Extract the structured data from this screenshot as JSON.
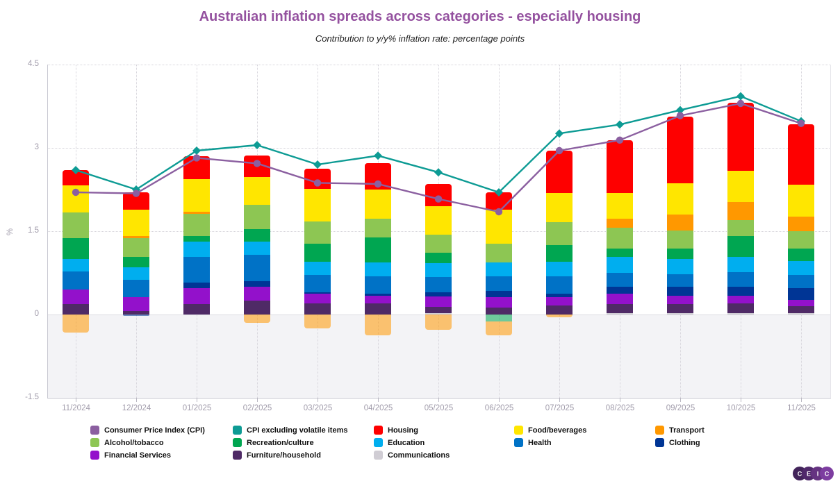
{
  "header": {
    "title": "Australian inflation spreads across categories - especially housing",
    "subtitle": "Contribution to y/y% inflation rate: percentage points",
    "title_color": "#94519f"
  },
  "axis": {
    "y_label": "%",
    "y_ticks": [
      "4.5",
      "3",
      "1.5",
      "0",
      "-1.5"
    ],
    "y_tick_values": [
      4.5,
      3,
      1.5,
      0,
      -1.5
    ],
    "ylim": [
      -1.5,
      4.5
    ]
  },
  "chart_data": {
    "type": "bar",
    "subtype": "stacked-bar-with-lines",
    "title": "Australian inflation spreads across categories - especially housing",
    "subtitle": "Contribution to y/y% inflation rate: percentage points",
    "ylabel": "%",
    "ylim": [
      -1.5,
      4.5
    ],
    "grid": "dotted",
    "categories": [
      "11/2024",
      "12/2024",
      "01/2025",
      "02/2025",
      "03/2025",
      "04/2025",
      "05/2025",
      "06/2025",
      "07/2025",
      "08/2025",
      "09/2025",
      "10/2025",
      "11/2025"
    ],
    "bar_series": [
      {
        "name": "Communications",
        "color": "#d0cdd4",
        "values": [
          0,
          0,
          0,
          0,
          0,
          0,
          0.02,
          0,
          0,
          0.03,
          0.03,
          0.02,
          0.02
        ]
      },
      {
        "name": "Furniture/household",
        "color": "#4f2a66",
        "values": [
          0.19,
          0.06,
          0.19,
          0.25,
          0.2,
          0.2,
          0.12,
          0.13,
          0.16,
          0.16,
          0.16,
          0.18,
          0.13
        ]
      },
      {
        "name": "Financial Services",
        "color": "#9311cb",
        "values": [
          0.26,
          0.25,
          0.29,
          0.25,
          0.17,
          0.14,
          0.18,
          0.18,
          0.15,
          0.19,
          0.15,
          0.14,
          0.11
        ]
      },
      {
        "name": "Clothing",
        "color": "#003595",
        "values": [
          0,
          -0.03,
          0.1,
          0.1,
          0.03,
          0.04,
          0.08,
          0.12,
          0.07,
          0.12,
          0.16,
          0.16,
          0.22
        ]
      },
      {
        "name": "Health",
        "color": "#0072c6",
        "values": [
          0.32,
          0.32,
          0.46,
          0.48,
          0.31,
          0.31,
          0.27,
          0.26,
          0.31,
          0.25,
          0.23,
          0.26,
          0.23
        ]
      },
      {
        "name": "Education",
        "color": "#00aeef",
        "values": [
          0.23,
          0.22,
          0.27,
          0.23,
          0.24,
          0.25,
          0.25,
          0.25,
          0.26,
          0.29,
          0.27,
          0.28,
          0.25
        ]
      },
      {
        "name": "Recreation/culture",
        "color": "#00a651",
        "values": [
          0.38,
          0.19,
          0.1,
          0.23,
          0.32,
          0.45,
          0.19,
          -0.13,
          0.3,
          0.15,
          0.19,
          0.37,
          0.23
        ]
      },
      {
        "name": "Alcohol/tobacco",
        "color": "#8dc653",
        "values": [
          0.46,
          0.34,
          0.4,
          0.44,
          0.4,
          0.34,
          0.33,
          0.34,
          0.41,
          0.37,
          0.32,
          0.29,
          0.31
        ]
      },
      {
        "name": "Transport",
        "color": "#ff9800",
        "values": [
          -0.33,
          0.03,
          0.04,
          -0.15,
          -0.25,
          -0.38,
          -0.27,
          -0.24,
          -0.05,
          0.17,
          0.29,
          0.33,
          0.26
        ]
      },
      {
        "name": "Food/beverages",
        "color": "#ffe600",
        "values": [
          0.49,
          0.48,
          0.59,
          0.5,
          0.59,
          0.52,
          0.51,
          0.61,
          0.53,
          0.46,
          0.56,
          0.56,
          0.58
        ]
      },
      {
        "name": "Housing",
        "color": "#fe0000",
        "values": [
          0.27,
          0.31,
          0.41,
          0.38,
          0.37,
          0.48,
          0.4,
          0.31,
          0.76,
          0.95,
          1.2,
          1.22,
          1.09
        ]
      }
    ],
    "line_series": [
      {
        "name": "CPI excluding volatile items",
        "color": "#0d9b94",
        "marker": "diamond",
        "values": [
          2.6,
          2.25,
          2.95,
          3.05,
          2.7,
          2.86,
          2.56,
          2.2,
          3.26,
          3.42,
          3.68,
          3.93,
          3.48
        ]
      },
      {
        "name": "Consumer Price Index (CPI)",
        "color": "#8b5fa0",
        "marker": "circle",
        "values": [
          2.2,
          2.18,
          2.82,
          2.72,
          2.37,
          2.35,
          2.08,
          1.85,
          2.95,
          3.14,
          3.58,
          3.8,
          3.44
        ]
      }
    ],
    "negative_segment_opacity": 0.55,
    "legend_position": "bottom"
  },
  "legend": {
    "rows": [
      [
        {
          "label": "Consumer Price Index (CPI)",
          "color": "#8b5fa0"
        },
        {
          "label": "CPI excluding volatile items",
          "color": "#0d9b94"
        },
        {
          "label": "Housing",
          "color": "#fe0000"
        },
        {
          "label": "Food/beverages",
          "color": "#ffe600"
        },
        {
          "label": "Transport",
          "color": "#ff9800"
        }
      ],
      [
        {
          "label": "Alcohol/tobacco",
          "color": "#8dc653"
        },
        {
          "label": "Recreation/culture",
          "color": "#00a651"
        },
        {
          "label": "Education",
          "color": "#00aeef"
        },
        {
          "label": "Health",
          "color": "#0072c6"
        },
        {
          "label": "Clothing",
          "color": "#003595"
        }
      ],
      [
        {
          "label": "Financial Services",
          "color": "#9311cb"
        },
        {
          "label": "Furniture/household",
          "color": "#4f2a66"
        },
        {
          "label": "Communications",
          "color": "#d0cdd4"
        }
      ]
    ]
  },
  "logo": {
    "letters": [
      "C",
      "E",
      "I",
      "C"
    ],
    "circle_colors": [
      "#42245a",
      "#50296b",
      "#653381",
      "#7d3da0"
    ]
  }
}
